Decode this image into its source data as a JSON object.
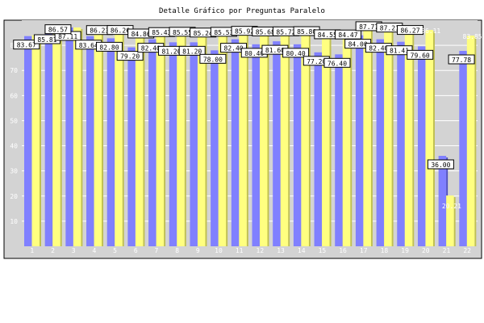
{
  "chart_data": {
    "type": "bar",
    "title": "Detalle Gráfico por Preguntas Paralelo",
    "xlabel": "",
    "ylabel": "",
    "ylim": [
      0,
      90
    ],
    "yticks": [
      10,
      20,
      30,
      40,
      50,
      60,
      70,
      80
    ],
    "grid": "horizontal",
    "legend": "none",
    "categories": [
      "1",
      "2",
      "3",
      "4",
      "5",
      "6",
      "7",
      "8",
      "9",
      "10",
      "11",
      "12",
      "13",
      "14",
      "15",
      "16",
      "17",
      "18",
      "19",
      "20",
      "21",
      "22"
    ],
    "series": [
      {
        "color": "#8080ff",
        "values": [
          83.67,
          85.81,
          87.11,
          83.64,
          82.8,
          79.2,
          82.4,
          81.2,
          81.2,
          78.0,
          82.4,
          80.4,
          81.6,
          80.4,
          77.2,
          76.4,
          84.0,
          82.4,
          81.41,
          79.6,
          36.0,
          77.78
        ]
      },
      {
        "color": "#ffff80",
        "values": [
          84.0,
          86.57,
          87.11,
          86.23,
          86.26,
          84.86,
          85.43,
          85.55,
          85.24,
          85.53,
          85.92,
          85.68,
          85.72,
          85.8,
          84.55,
          84.47,
          87.77,
          87.21,
          86.27,
          86.11,
          20.21,
          83.85
        ]
      }
    ],
    "data_labels": [
      [
        "83.67",
        "85.81",
        "87.11",
        "83.64",
        "82.80",
        "79.20",
        "82.40",
        "81.20",
        "81.20",
        "78.00",
        "82.40",
        "80.40",
        "81.60",
        "80.40",
        "77.20",
        "76.40",
        "84.00",
        "82.40",
        "81.41",
        "79.60",
        "36.00",
        "77.78"
      ],
      [
        "",
        "86.57",
        "",
        "86.23",
        "86.26",
        "84.86",
        "85.43",
        "85.55",
        "85.24",
        "85.53",
        "85.92",
        "85.68",
        "85.72",
        "85.80",
        "84.55",
        "84.47",
        "87.77",
        "87.21",
        "86.27",
        "86.11",
        "20.21",
        "83.85"
      ]
    ]
  }
}
